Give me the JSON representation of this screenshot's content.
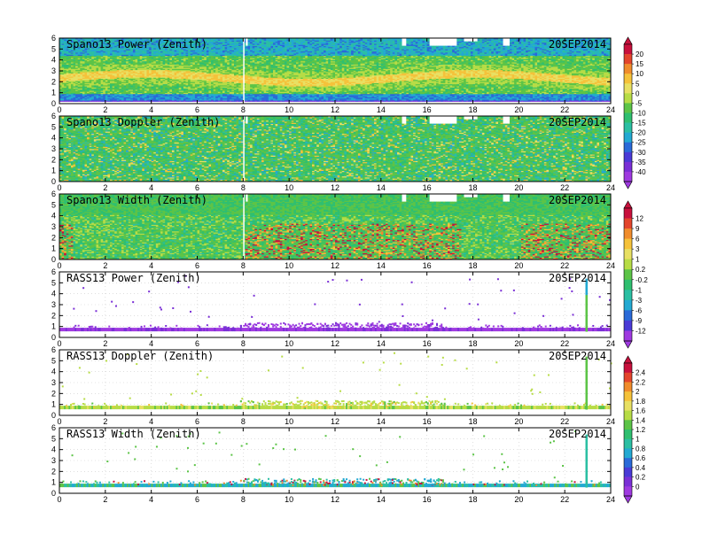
{
  "chart_data": [
    {
      "type": "heatmap",
      "title": "Spano13 Power (Zenith)",
      "date": "20SEP2014",
      "x_ticks": [
        "0",
        "2",
        "4",
        "6",
        "8",
        "10",
        "12",
        "14",
        "16",
        "18",
        "20",
        "22",
        "24"
      ],
      "y_ticks": [
        "0",
        "1",
        "2",
        "3",
        "4",
        "5",
        "6"
      ],
      "xlim": [
        0,
        24
      ],
      "ylim": [
        0,
        6
      ],
      "pattern": "power",
      "colorbar": "cb1"
    },
    {
      "type": "heatmap",
      "title": "Spano13 Doppler (Zenith)",
      "date": "20SEP2014",
      "x_ticks": [
        "0",
        "2",
        "4",
        "6",
        "8",
        "10",
        "12",
        "14",
        "16",
        "18",
        "20",
        "22",
        "24"
      ],
      "y_ticks": [
        "0",
        "1",
        "2",
        "3",
        "4",
        "5",
        "6"
      ],
      "xlim": [
        0,
        24
      ],
      "ylim": [
        0,
        6
      ],
      "pattern": "doppler",
      "colorbar": "cb1"
    },
    {
      "type": "heatmap",
      "title": "Spano13 Width (Zenith)",
      "date": "20SEP2014",
      "x_ticks": [
        "0",
        "2",
        "4",
        "6",
        "8",
        "10",
        "12",
        "14",
        "16",
        "18",
        "20",
        "22",
        "24"
      ],
      "y_ticks": [
        "0",
        "1",
        "2",
        "3",
        "4",
        "5",
        "6"
      ],
      "xlim": [
        0,
        24
      ],
      "ylim": [
        0,
        6
      ],
      "pattern": "width",
      "colorbar": "cb2"
    },
    {
      "type": "heatmap",
      "title": "RASS13 Power (Zenith)",
      "date": "20SEP2014",
      "x_ticks": [
        "0",
        "2",
        "4",
        "6",
        "8",
        "10",
        "12",
        "14",
        "16",
        "18",
        "20",
        "22",
        "24"
      ],
      "y_ticks": [
        "0",
        "1",
        "2",
        "3",
        "4",
        "5",
        "6"
      ],
      "xlim": [
        0,
        24
      ],
      "ylim": [
        0,
        6
      ],
      "pattern": "rass_power",
      "colorbar": "cb2"
    },
    {
      "type": "heatmap",
      "title": "RASS13 Doppler (Zenith)",
      "date": "20SEP2014",
      "x_ticks": [
        "0",
        "2",
        "4",
        "6",
        "8",
        "10",
        "12",
        "14",
        "16",
        "18",
        "20",
        "22",
        "24"
      ],
      "y_ticks": [
        "0",
        "1",
        "2",
        "3",
        "4",
        "5",
        "6"
      ],
      "xlim": [
        0,
        24
      ],
      "ylim": [
        0,
        6
      ],
      "pattern": "rass_doppler",
      "colorbar": "cb3"
    },
    {
      "type": "heatmap",
      "title": "RASS13 Width (Zenith)",
      "date": "20SEP2014",
      "x_ticks": [
        "0",
        "2",
        "4",
        "6",
        "8",
        "10",
        "12",
        "14",
        "16",
        "18",
        "20",
        "22",
        "24"
      ],
      "y_ticks": [
        "0",
        "1",
        "2",
        "3",
        "4",
        "5",
        "6"
      ],
      "xlim": [
        0,
        24
      ],
      "ylim": [
        0,
        6
      ],
      "pattern": "rass_width",
      "colorbar": "cb3"
    }
  ],
  "colorbars": {
    "cb1": {
      "labels": [
        "20",
        "15",
        "10",
        "5",
        "0",
        "-5",
        "-10",
        "-15",
        "-20",
        "-25",
        "-30",
        "-35",
        "-40"
      ],
      "colors": [
        "#c8103c",
        "#e3452c",
        "#f08c2c",
        "#f5c23a",
        "#e8e063",
        "#b7dc46",
        "#5cc447",
        "#2fbf70",
        "#2bbfa3",
        "#23a9d2",
        "#2a6ad8",
        "#4a3ad6",
        "#7a2fd6",
        "#9f3ae0"
      ]
    },
    "cb2": {
      "labels": [
        "12",
        "9",
        "6",
        "3",
        "1",
        "0.2",
        "-0.2",
        "-1",
        "-3",
        "-6",
        "-9",
        "-12"
      ],
      "colors": [
        "#c8103c",
        "#e3452c",
        "#f08c2c",
        "#f5c23a",
        "#e8e063",
        "#b7dc46",
        "#5cc447",
        "#2fbf70",
        "#2bbfa3",
        "#23a9d2",
        "#2a6ad8",
        "#4a3ad6",
        "#9f3ae0"
      ]
    },
    "cb3": {
      "labels": [
        "2.4",
        "2.2",
        "2",
        "1.8",
        "1.6",
        "1.4",
        "1.2",
        "1",
        "0.8",
        "0.6",
        "0.4",
        "0.2",
        "0"
      ],
      "colors": [
        "#c8103c",
        "#e3452c",
        "#f08c2c",
        "#f5c23a",
        "#e8e063",
        "#b7dc46",
        "#5cc447",
        "#2fbf70",
        "#2bbfa3",
        "#23a9d2",
        "#2a6ad8",
        "#4a3ad6",
        "#7a2fd6",
        "#9f3ae0"
      ]
    }
  }
}
